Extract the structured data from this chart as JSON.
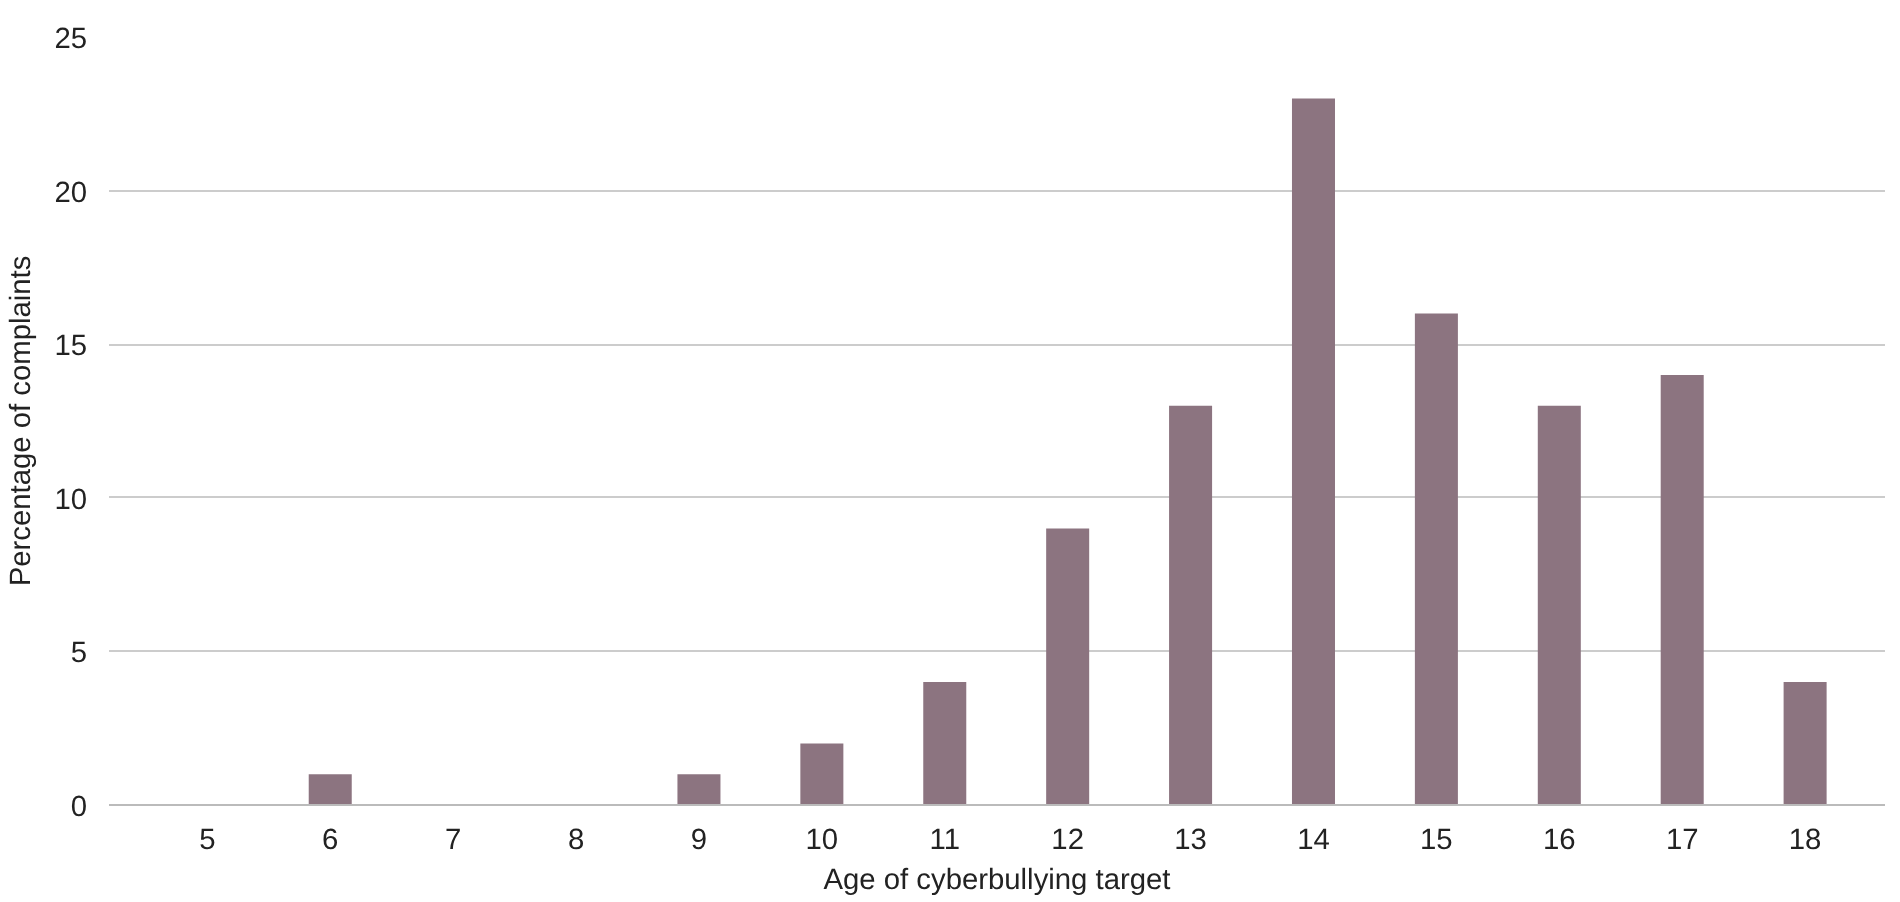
{
  "chart_data": {
    "type": "bar",
    "xlabel": "Age of cyberbullying target",
    "ylabel": "Percentage of complaints",
    "categories": [
      "5",
      "6",
      "7",
      "8",
      "9",
      "10",
      "11",
      "12",
      "13",
      "14",
      "15",
      "16",
      "17",
      "18"
    ],
    "values": [
      0,
      1,
      0,
      0,
      1,
      2,
      4,
      9,
      13,
      23,
      16,
      13,
      14,
      4
    ],
    "color": "#8c7480",
    "ylim": [
      0,
      25
    ],
    "yticks": [
      0,
      5,
      10,
      15,
      20,
      25
    ],
    "grid": "y"
  }
}
